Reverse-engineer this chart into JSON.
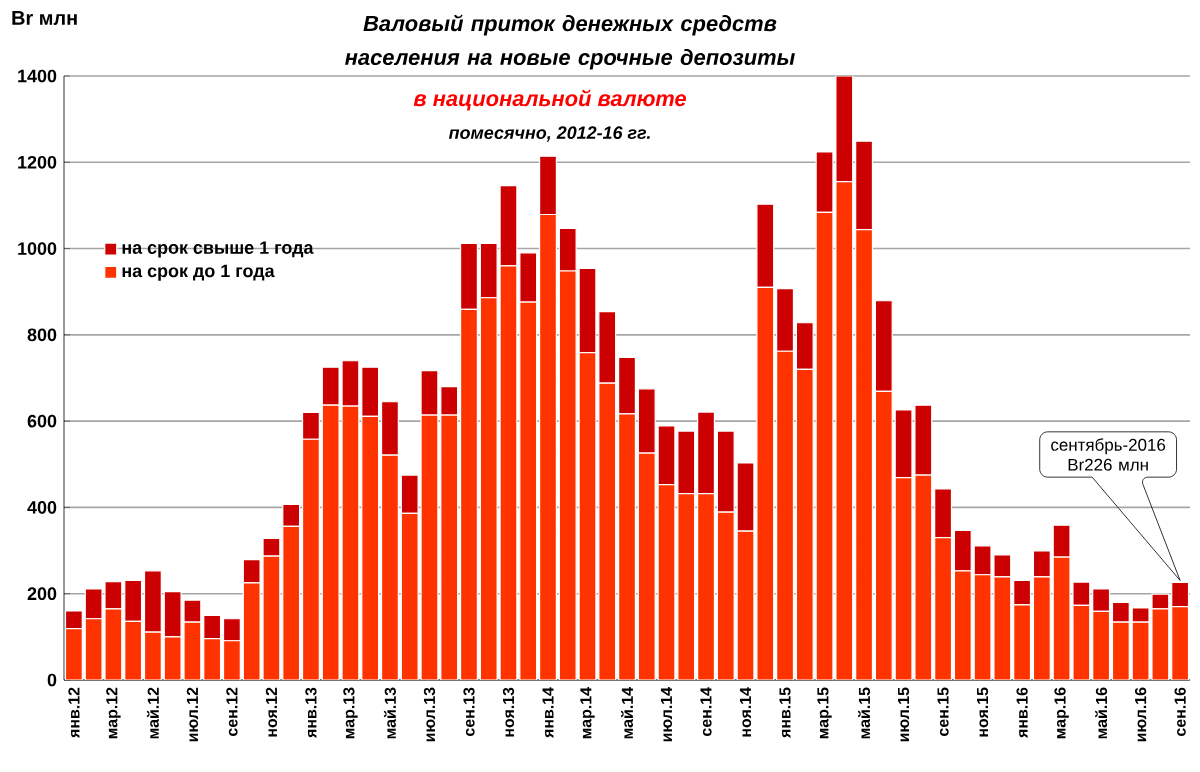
{
  "chart_data": {
    "type": "bar",
    "stacked": true,
    "title": "Валовый приток денежных средств населения на новые срочные депозиты",
    "subtitle": "в национальной  валюте",
    "ylabel": "Br млн",
    "categories": [
      "янв.12",
      null,
      "мар.12",
      null,
      "май.12",
      null,
      "июл.12",
      null,
      "сен.12",
      null,
      "ноя.12",
      null,
      "янв.13",
      null,
      "мар.13",
      null,
      "май.13",
      null,
      "июл.13",
      null,
      "сен.13",
      null,
      "ноя.13",
      null,
      "янв.14",
      null,
      "мар.14",
      null,
      "май.14",
      null,
      "июл.14",
      null,
      "сен.14",
      null,
      "ноя.14",
      null,
      "янв.15",
      null,
      "мар.15",
      null,
      "май.15",
      null,
      "июл.15",
      null,
      "сен.15",
      null,
      "ноя.15",
      null,
      "янв.16",
      null,
      "мар.16",
      null,
      "май.16",
      null,
      "июл.16",
      null,
      "сен.16"
    ],
    "series": [
      {
        "name": "на срок до 1 года",
        "color": "#ff3300",
        "values": [
          119,
          142,
          165,
          136,
          111,
          100,
          134,
          96,
          91,
          225,
          287,
          356,
          558,
          637,
          635,
          611,
          521,
          386,
          614,
          614,
          859,
          886,
          960,
          876,
          1079,
          948,
          759,
          688,
          617,
          526,
          453,
          432,
          432,
          389,
          345,
          910,
          762,
          720,
          1084,
          1155,
          1044,
          669,
          469,
          475,
          330,
          253,
          244,
          239,
          174,
          239,
          285,
          173,
          159,
          134,
          134,
          165,
          170
        ]
      },
      {
        "name": "на срок свыше 1 года",
        "color": "#cc0000",
        "values": [
          41,
          69,
          63,
          95,
          142,
          105,
          51,
          54,
          51,
          54,
          41,
          51,
          62,
          88,
          105,
          114,
          124,
          89,
          103,
          66,
          153,
          126,
          186,
          114,
          135,
          99,
          195,
          166,
          131,
          149,
          136,
          145,
          189,
          188,
          158,
          193,
          145,
          108,
          140,
          245,
          205,
          210,
          157,
          162,
          113,
          94,
          67,
          51,
          57,
          60,
          74,
          54,
          52,
          46,
          33,
          34,
          56
        ]
      }
    ],
    "ylim": [
      0,
      1400
    ],
    "yticks": [
      0,
      200,
      400,
      600,
      800,
      1000,
      1200,
      1400
    ],
    "grid": "y",
    "legend": "left",
    "annotations": [
      "помесячно, 2012-16 гг.",
      "сентябрь-2016 Br226 млн"
    ]
  }
}
